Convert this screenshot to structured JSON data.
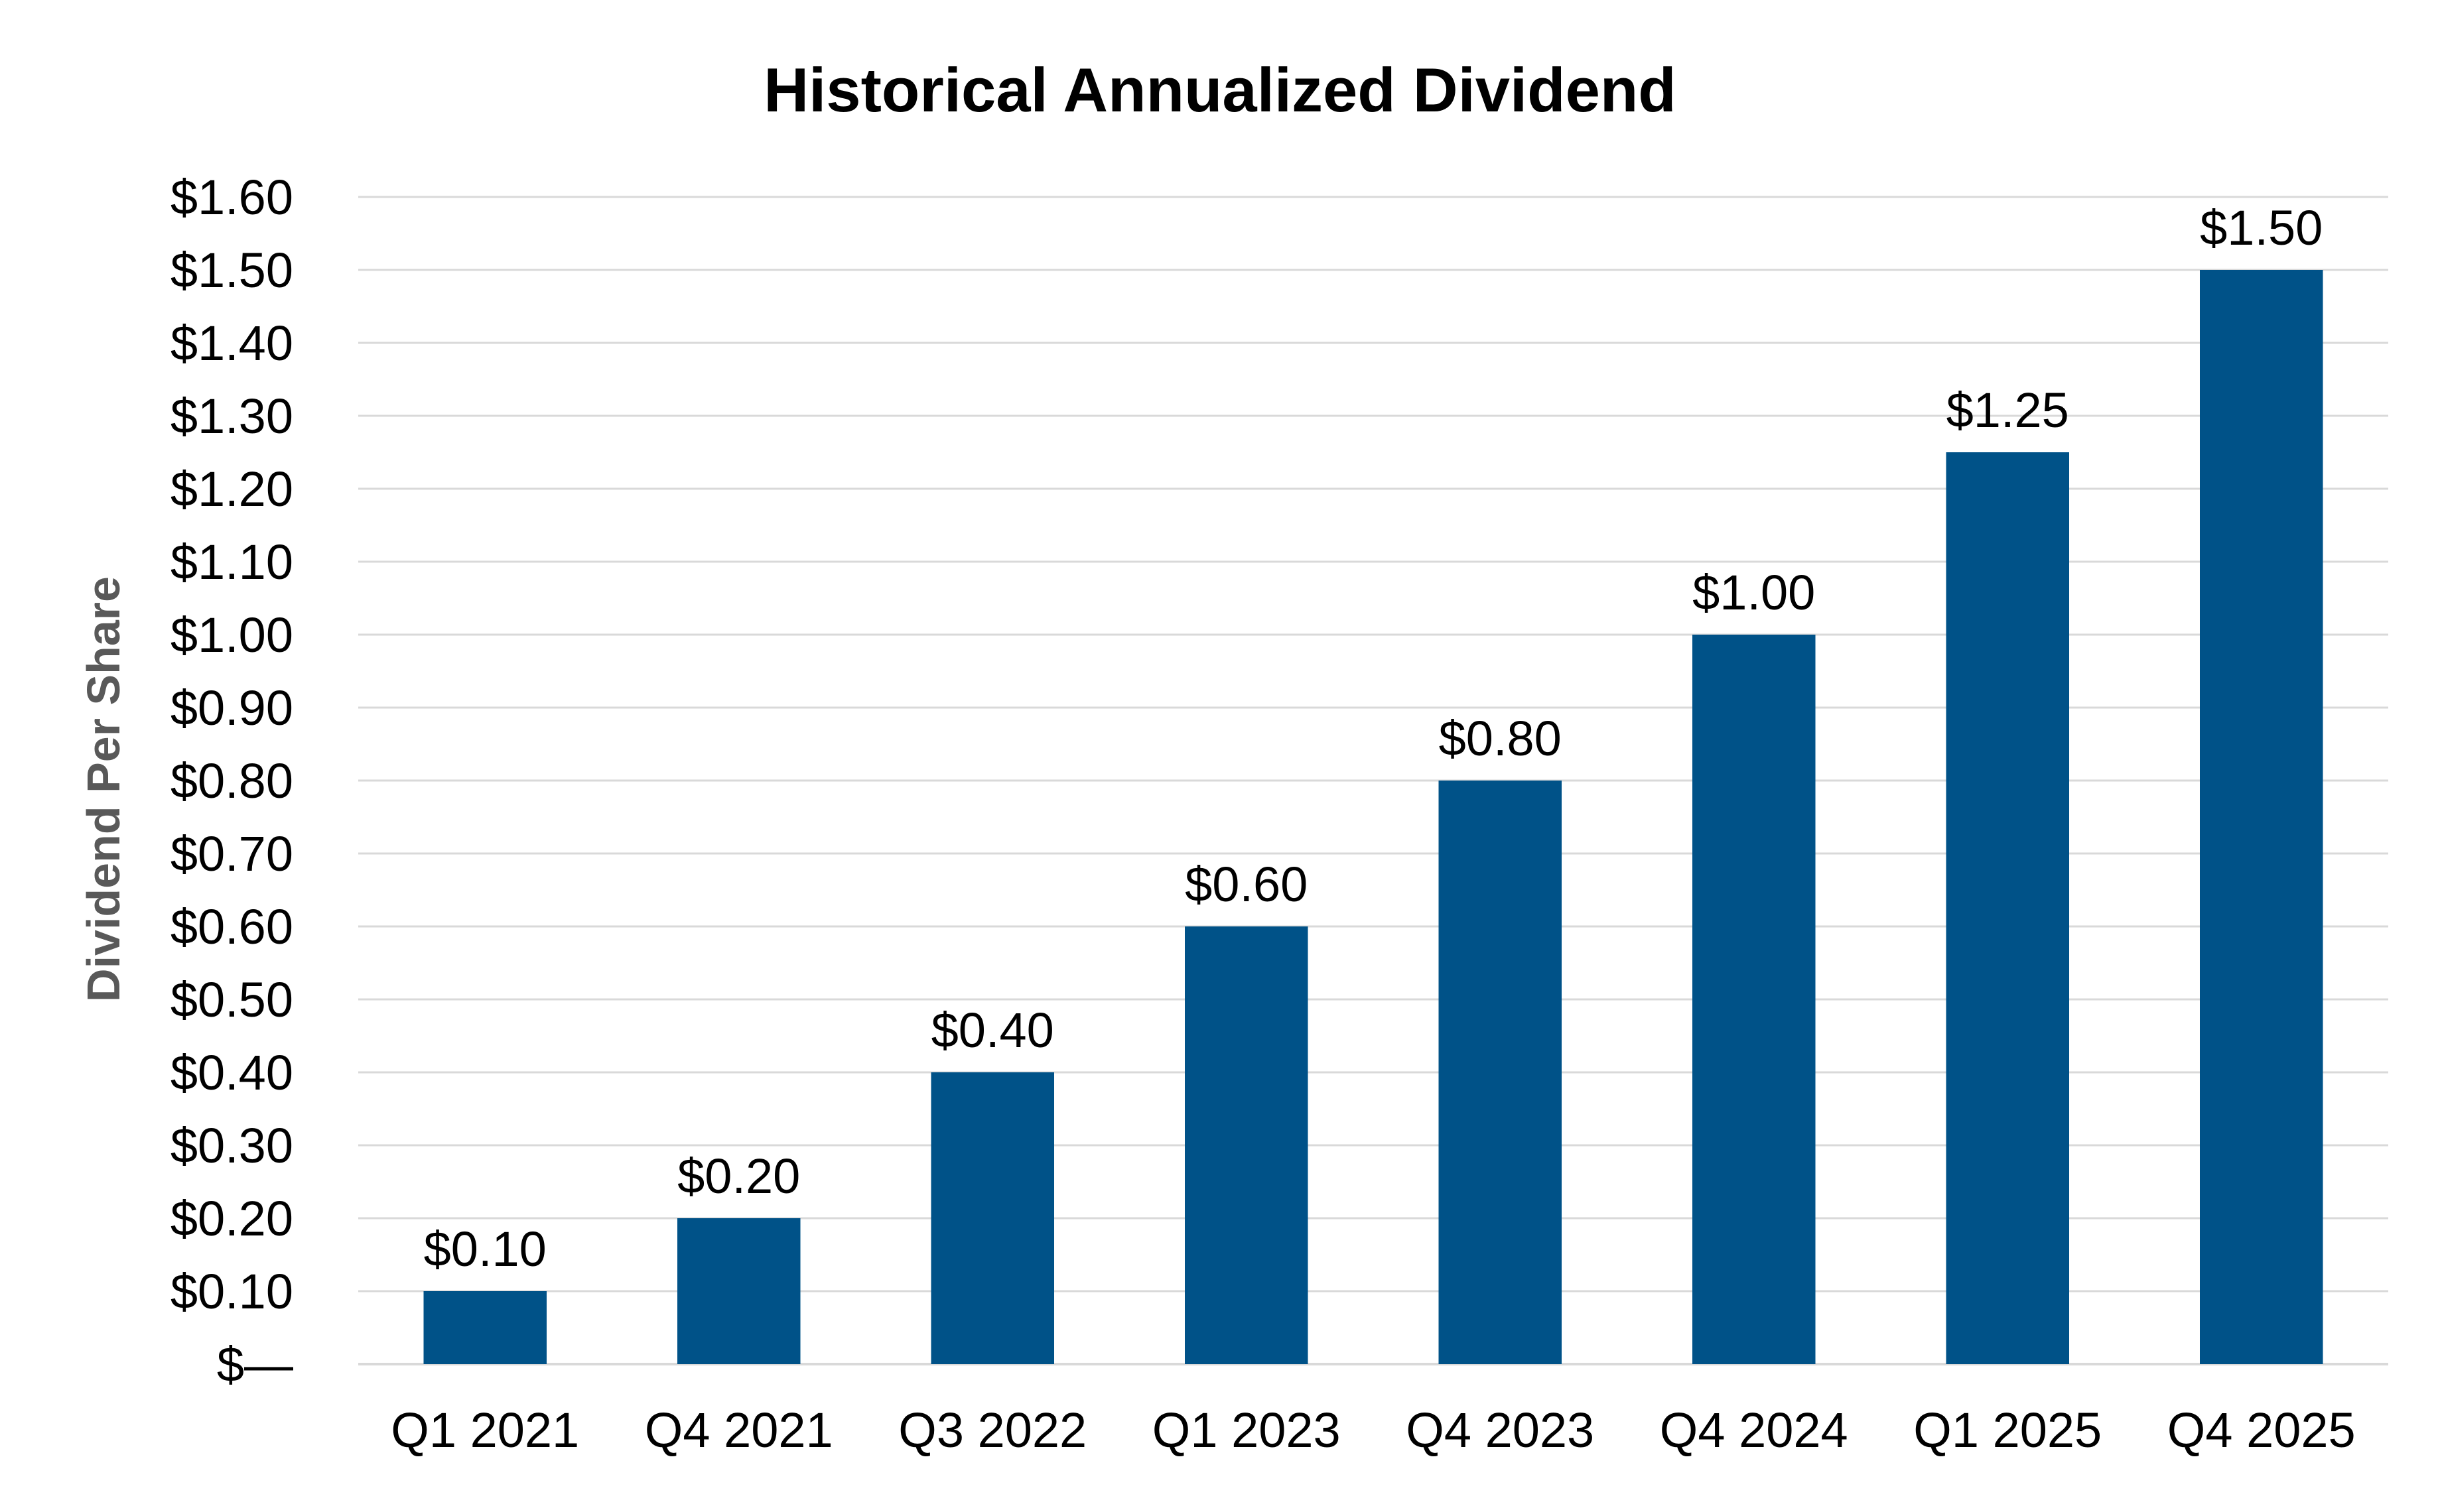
{
  "chart_data": {
    "type": "bar",
    "title": "Historical Annualized Dividend",
    "xlabel": "",
    "ylabel": "Dividend Per Share",
    "categories": [
      "Q1 2021",
      "Q4 2021",
      "Q3 2022",
      "Q1 2023",
      "Q4 2023",
      "Q4 2024",
      "Q1 2025",
      "Q4 2025"
    ],
    "values": [
      0.1,
      0.2,
      0.4,
      0.6,
      0.8,
      1.0,
      1.25,
      1.5
    ],
    "data_labels": [
      "$0.10",
      "$0.20",
      "$0.40",
      "$0.60",
      "$0.80",
      "$1.00",
      "$1.25",
      "$1.50"
    ],
    "ylim": [
      0,
      1.6
    ],
    "yticks": [
      0,
      0.1,
      0.2,
      0.3,
      0.4,
      0.5,
      0.6,
      0.7,
      0.8,
      0.9,
      1.0,
      1.1,
      1.2,
      1.3,
      1.4,
      1.5,
      1.6
    ],
    "ytick_labels": [
      "$—",
      "$0.10",
      "$0.20",
      "$0.30",
      "$0.40",
      "$0.50",
      "$0.60",
      "$0.70",
      "$0.80",
      "$0.90",
      "$1.00",
      "$1.10",
      "$1.20",
      "$1.30",
      "$1.40",
      "$1.50",
      "$1.60"
    ],
    "grid": true,
    "legend": "none",
    "bar_color": "#005288"
  }
}
